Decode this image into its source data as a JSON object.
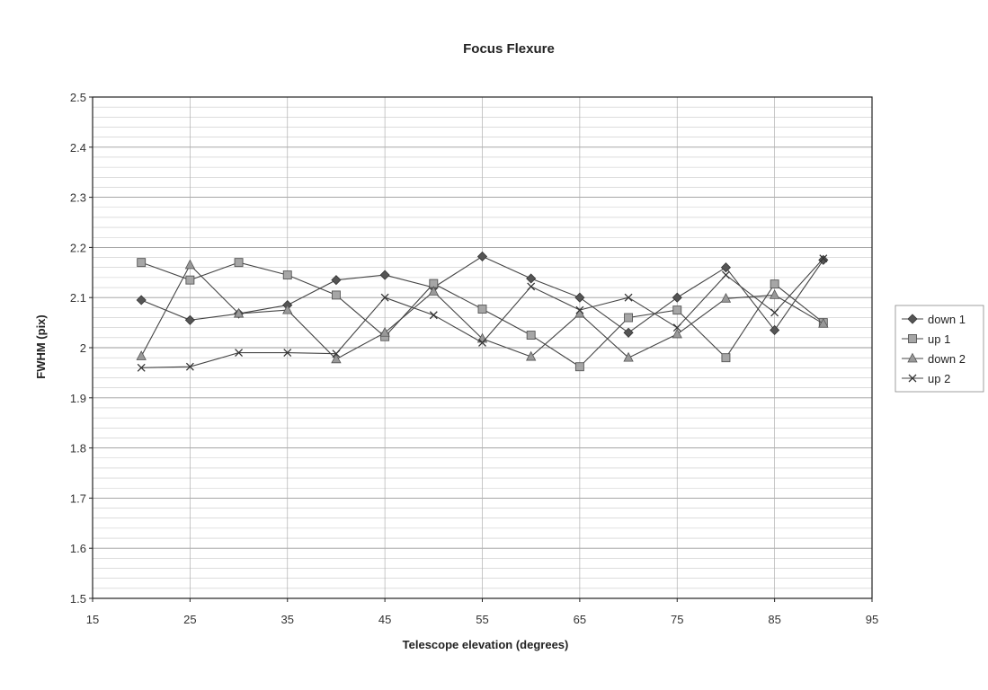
{
  "chart_data": {
    "type": "line",
    "title": "Focus Flexure",
    "xlabel": "Telescope elevation (degrees)",
    "ylabel": "FWHM (pix)",
    "xlim": [
      15,
      95
    ],
    "ylim": [
      1.5,
      2.5
    ],
    "xticks": [
      "15",
      "25",
      "35",
      "45",
      "55",
      "65",
      "75",
      "85",
      "95"
    ],
    "yticks": [
      "1.5",
      "1.6",
      "1.7",
      "1.8",
      "1.9",
      "2",
      "2.1",
      "2.2",
      "2.3",
      "2.4",
      "2.5"
    ],
    "grid": true,
    "legend_position": "right",
    "x": [
      20,
      25,
      30,
      35,
      40,
      45,
      50,
      55,
      60,
      65,
      70,
      75,
      80,
      85,
      90
    ],
    "series": [
      {
        "name": "down 1",
        "marker": "diamond",
        "values": [
          2.095,
          2.055,
          2.068,
          2.085,
          2.135,
          2.145,
          2.12,
          2.182,
          2.138,
          2.1,
          2.03,
          2.1,
          2.16,
          2.035,
          2.175
        ]
      },
      {
        "name": "up 1",
        "marker": "square",
        "values": [
          2.17,
          2.135,
          2.17,
          2.145,
          2.105,
          2.022,
          2.128,
          2.077,
          2.025,
          1.962,
          2.06,
          2.075,
          1.98,
          2.127,
          2.05
        ]
      },
      {
        "name": "down 2",
        "marker": "triangle",
        "values": [
          1.983,
          2.165,
          2.068,
          2.075,
          1.977,
          2.03,
          2.112,
          2.018,
          1.982,
          2.068,
          1.98,
          2.027,
          2.098,
          2.105,
          2.048
        ]
      },
      {
        "name": "up 2",
        "marker": "x",
        "values": [
          1.96,
          1.962,
          1.99,
          1.99,
          1.988,
          2.1,
          2.065,
          2.01,
          2.122,
          2.075,
          2.1,
          2.04,
          2.145,
          2.07,
          2.178
        ]
      }
    ]
  }
}
